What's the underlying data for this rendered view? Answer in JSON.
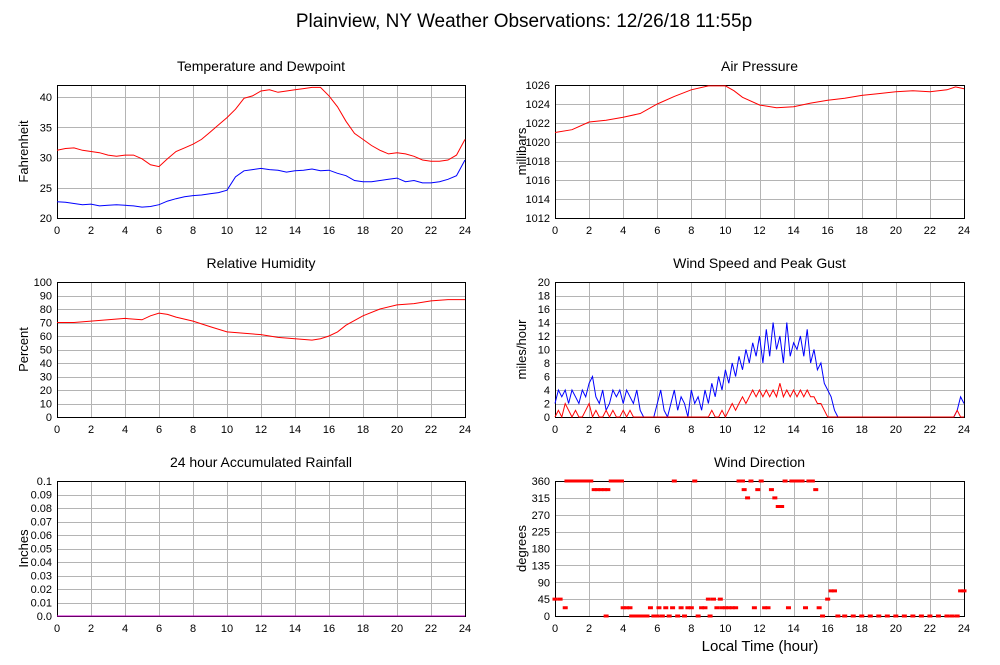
{
  "page": {
    "title": "Plainview, NY Weather Observations: 12/26/18 11:55p",
    "x_axis_title": "Local Time (hour)"
  },
  "colors": {
    "red": "#ff0000",
    "blue": "#0000ff",
    "grid": "#b4b4b4",
    "rain": "#cc00cc"
  },
  "chart_data": [
    {
      "id": "temp",
      "type": "line",
      "title": "Temperature and Dewpoint",
      "ylabel": "Fahrenheit",
      "xlim": [
        0,
        24
      ],
      "ylim": [
        20,
        42
      ],
      "x_ticks": [
        0,
        2,
        4,
        6,
        8,
        10,
        12,
        14,
        16,
        18,
        20,
        22,
        24
      ],
      "y_ticks": [
        20,
        25,
        30,
        35,
        40
      ],
      "series": [
        {
          "color": "red",
          "x": [
            0,
            0.5,
            1,
            1.5,
            2,
            2.5,
            3,
            3.5,
            4,
            4.5,
            5,
            5.5,
            6,
            6.5,
            7,
            7.5,
            8,
            8.5,
            9,
            9.5,
            10,
            10.5,
            11,
            11.5,
            12,
            12.5,
            13,
            13.5,
            14,
            14.5,
            15,
            15.5,
            16,
            16.5,
            17,
            17.5,
            18,
            18.5,
            19,
            19.5,
            20,
            20.5,
            21,
            21.5,
            22,
            22.5,
            23,
            23.5,
            24
          ],
          "y": [
            31.2,
            31.5,
            31.6,
            31.2,
            31.0,
            30.8,
            30.4,
            30.2,
            30.4,
            30.4,
            29.8,
            28.8,
            28.5,
            29.8,
            31.0,
            31.6,
            32.2,
            33.0,
            34.2,
            35.4,
            36.6,
            38.0,
            39.8,
            40.2,
            41.0,
            41.2,
            40.8,
            41.0,
            41.2,
            41.4,
            41.6,
            41.6,
            40.2,
            38.4,
            36.0,
            34.0,
            33.0,
            32.0,
            31.2,
            30.6,
            30.8,
            30.6,
            30.2,
            29.6,
            29.4,
            29.4,
            29.6,
            30.4,
            33.0
          ]
        },
        {
          "color": "blue",
          "x": [
            0,
            0.5,
            1,
            1.5,
            2,
            2.5,
            3,
            3.5,
            4,
            4.5,
            5,
            5.5,
            6,
            6.5,
            7,
            7.5,
            8,
            8.5,
            9,
            9.5,
            10,
            10.5,
            11,
            11.5,
            12,
            12.5,
            13,
            13.5,
            14,
            14.5,
            15,
            15.5,
            16,
            16.5,
            17,
            17.5,
            18,
            18.5,
            19,
            19.5,
            20,
            20.5,
            21,
            21.5,
            22,
            22.5,
            23,
            23.5,
            24
          ],
          "y": [
            22.7,
            22.6,
            22.4,
            22.2,
            22.3,
            22.0,
            22.1,
            22.2,
            22.1,
            22.0,
            21.8,
            21.9,
            22.2,
            22.8,
            23.2,
            23.5,
            23.7,
            23.8,
            24.0,
            24.2,
            24.6,
            26.8,
            27.8,
            28.0,
            28.2,
            28.0,
            27.9,
            27.6,
            27.8,
            27.9,
            28.1,
            27.8,
            27.9,
            27.4,
            27.0,
            26.2,
            26.0,
            26.0,
            26.2,
            26.4,
            26.6,
            26.0,
            26.2,
            25.8,
            25.8,
            26.0,
            26.4,
            27.0,
            29.6
          ]
        }
      ]
    },
    {
      "id": "pressure",
      "type": "line",
      "title": "Air Pressure",
      "ylabel": "millibars",
      "xlim": [
        0,
        24
      ],
      "ylim": [
        1012,
        1026
      ],
      "x_ticks": [
        0,
        2,
        4,
        6,
        8,
        10,
        12,
        14,
        16,
        18,
        20,
        22,
        24
      ],
      "y_ticks": [
        1012,
        1014,
        1016,
        1018,
        1020,
        1022,
        1024,
        1026
      ],
      "series": [
        {
          "color": "red",
          "x": [
            0,
            1,
            2,
            3,
            4,
            5,
            6,
            7,
            8,
            9,
            10,
            10.5,
            11,
            12,
            13,
            14,
            15,
            16,
            17,
            18,
            19,
            20,
            21,
            22,
            23,
            23.5,
            24
          ],
          "y": [
            1021.0,
            1021.3,
            1022.1,
            1022.3,
            1022.6,
            1023.0,
            1024.0,
            1024.8,
            1025.5,
            1025.9,
            1025.9,
            1025.4,
            1024.7,
            1023.9,
            1023.6,
            1023.7,
            1024.1,
            1024.4,
            1024.6,
            1024.9,
            1025.1,
            1025.3,
            1025.4,
            1025.3,
            1025.5,
            1025.8,
            1025.6
          ]
        }
      ]
    },
    {
      "id": "humidity",
      "type": "line",
      "title": "Relative Humidity",
      "ylabel": "Percent",
      "xlim": [
        0,
        24
      ],
      "ylim": [
        0,
        100
      ],
      "x_ticks": [
        0,
        2,
        4,
        6,
        8,
        10,
        12,
        14,
        16,
        18,
        20,
        22,
        24
      ],
      "y_ticks": [
        0,
        10,
        20,
        30,
        40,
        50,
        60,
        70,
        80,
        90,
        100
      ],
      "series": [
        {
          "color": "red",
          "x": [
            0,
            1,
            2,
            3,
            4,
            5,
            5.5,
            6,
            6.5,
            7,
            8,
            9,
            10,
            11,
            12,
            13,
            14,
            15,
            15.5,
            16,
            16.5,
            17,
            18,
            19,
            20,
            21,
            22,
            23,
            24
          ],
          "y": [
            70,
            70,
            71,
            72,
            73,
            72,
            75,
            77,
            76,
            74,
            71,
            67,
            63,
            62,
            61,
            59,
            58,
            57,
            58,
            60,
            63,
            68,
            75,
            80,
            83,
            84,
            86,
            87,
            87
          ]
        }
      ]
    },
    {
      "id": "wind",
      "type": "line",
      "title": "Wind Speed and Peak Gust",
      "ylabel": "miles/hour",
      "xlim": [
        0,
        24
      ],
      "ylim": [
        0,
        20
      ],
      "x_ticks": [
        0,
        2,
        4,
        6,
        8,
        10,
        12,
        14,
        16,
        18,
        20,
        22,
        24
      ],
      "y_ticks": [
        0,
        2,
        4,
        6,
        8,
        10,
        12,
        14,
        16,
        18,
        20
      ],
      "series": [
        {
          "color": "blue",
          "x": [
            0,
            0.2,
            0.4,
            0.6,
            0.8,
            1,
            1.2,
            1.4,
            1.6,
            1.8,
            2,
            2.2,
            2.4,
            2.6,
            2.8,
            3,
            3.2,
            3.4,
            3.6,
            3.8,
            4,
            4.2,
            4.4,
            4.6,
            4.8,
            5,
            5.2,
            5.4,
            5.6,
            5.8,
            6,
            6.2,
            6.4,
            6.6,
            6.8,
            7,
            7.2,
            7.4,
            7.6,
            7.8,
            8,
            8.2,
            8.4,
            8.6,
            8.8,
            9,
            9.2,
            9.4,
            9.6,
            9.8,
            10,
            10.2,
            10.4,
            10.6,
            10.8,
            11,
            11.2,
            11.4,
            11.6,
            11.8,
            12,
            12.2,
            12.4,
            12.6,
            12.8,
            13,
            13.2,
            13.4,
            13.6,
            13.8,
            14,
            14.2,
            14.4,
            14.6,
            14.8,
            15,
            15.2,
            15.4,
            15.6,
            15.8,
            16,
            16.2,
            16.4,
            16.6,
            17,
            18,
            19,
            20,
            21,
            22,
            23,
            23.4,
            23.6,
            23.8,
            24
          ],
          "y": [
            2,
            4,
            3,
            4,
            2,
            4,
            3,
            2,
            4,
            3,
            5,
            6,
            3,
            2,
            4,
            1,
            2,
            4,
            3,
            4,
            2,
            4,
            3,
            2,
            4,
            1,
            0,
            0,
            0,
            0,
            2,
            4,
            1,
            0,
            2,
            4,
            1,
            3,
            2,
            0,
            4,
            2,
            3,
            1,
            4,
            2,
            5,
            3,
            6,
            4,
            7,
            5,
            8,
            6,
            9,
            7,
            10,
            8,
            11,
            9,
            12,
            8,
            13,
            9,
            14,
            10,
            12,
            8,
            14,
            9,
            11,
            10,
            12,
            9,
            13,
            8,
            10,
            7,
            8,
            5,
            4,
            3,
            1,
            0,
            0,
            0,
            0,
            0,
            0,
            0,
            0,
            0,
            1,
            3,
            2
          ]
        },
        {
          "color": "red",
          "x": [
            0,
            0.2,
            0.4,
            0.6,
            0.8,
            1,
            1.2,
            1.4,
            1.6,
            1.8,
            2,
            2.2,
            2.4,
            2.6,
            2.8,
            3,
            3.2,
            3.4,
            3.6,
            3.8,
            4,
            4.2,
            4.4,
            4.6,
            4.8,
            5,
            5.2,
            5.4,
            5.6,
            5.8,
            6,
            6.2,
            6.4,
            6.6,
            6.8,
            7,
            7.2,
            7.4,
            7.6,
            7.8,
            8,
            8.2,
            8.4,
            8.6,
            8.8,
            9,
            9.2,
            9.4,
            9.6,
            9.8,
            10,
            10.2,
            10.4,
            10.6,
            10.8,
            11,
            11.2,
            11.4,
            11.6,
            11.8,
            12,
            12.2,
            12.4,
            12.6,
            12.8,
            13,
            13.2,
            13.4,
            13.6,
            13.8,
            14,
            14.2,
            14.4,
            14.6,
            14.8,
            15,
            15.2,
            15.4,
            15.6,
            15.8,
            16,
            16.2,
            16.4,
            16.6,
            17,
            18,
            19,
            20,
            21,
            22,
            23,
            23.4,
            23.6,
            23.8,
            24
          ],
          "y": [
            0,
            1,
            0,
            2,
            1,
            0,
            1,
            0,
            0,
            1,
            2,
            0,
            1,
            0,
            0,
            1,
            0,
            1,
            0,
            0,
            1,
            0,
            1,
            0,
            0,
            0,
            0,
            0,
            0,
            0,
            0,
            0,
            0,
            0,
            0,
            0,
            0,
            0,
            0,
            0,
            0,
            0,
            0,
            0,
            0,
            0,
            1,
            0,
            0,
            1,
            0,
            1,
            2,
            1,
            2,
            3,
            2,
            3,
            4,
            3,
            4,
            3,
            4,
            3,
            4,
            3,
            5,
            3,
            4,
            3,
            4,
            3,
            4,
            3,
            4,
            3,
            3,
            2,
            2,
            1,
            0,
            0,
            0,
            0,
            0,
            0,
            0,
            0,
            0,
            0,
            0,
            0,
            1,
            0,
            0
          ]
        }
      ]
    },
    {
      "id": "rain",
      "type": "line",
      "title": "24 hour Accumulated Rainfall",
      "ylabel": "Inches",
      "xlim": [
        0,
        24
      ],
      "ylim": [
        0,
        0.1
      ],
      "x_ticks": [
        0,
        2,
        4,
        6,
        8,
        10,
        12,
        14,
        16,
        18,
        20,
        22,
        24
      ],
      "y_ticks": [
        0.0,
        0.01,
        0.02,
        0.03,
        0.04,
        0.05,
        0.06,
        0.07,
        0.08,
        0.09,
        0.1
      ],
      "series": [
        {
          "color": "rain",
          "x": [
            0,
            24
          ],
          "y": [
            0,
            0
          ]
        }
      ]
    },
    {
      "id": "direction",
      "type": "scatter",
      "title": "Wind Direction",
      "ylabel": "degrees",
      "xlabel": "Local Time (hour)",
      "xlim": [
        0,
        24
      ],
      "ylim": [
        0,
        360
      ],
      "x_ticks": [
        0,
        2,
        4,
        6,
        8,
        10,
        12,
        14,
        16,
        18,
        20,
        22,
        24
      ],
      "y_ticks": [
        0,
        45,
        90,
        135,
        180,
        225,
        270,
        315,
        360
      ],
      "series": [
        {
          "color": "red",
          "x": [
            0,
            0.3,
            0.6,
            0.7,
            0.9,
            1.1,
            1.3,
            1.5,
            1.7,
            1.9,
            2.1,
            2.3,
            2.5,
            2.7,
            2.9,
            3.1,
            3.0,
            3.3,
            3.5,
            3.7,
            3.9,
            4.0,
            4.2,
            4.4,
            4.5,
            4.6,
            4.8,
            5.0,
            5.2,
            5.4,
            5.6,
            5.8,
            6.0,
            6.1,
            6.3,
            6.5,
            6.7,
            6.9,
            7.0,
            7.2,
            7.4,
            7.6,
            7.8,
            8.0,
            8.2,
            8.4,
            8.6,
            8.8,
            9.0,
            9.1,
            9.3,
            9.5,
            9.7,
            9.8,
            10.0,
            10.2,
            10.4,
            10.6,
            10.8,
            11.0,
            11.1,
            11.3,
            11.5,
            11.7,
            11.9,
            12.1,
            12.3,
            12.5,
            12.7,
            12.9,
            13.1,
            13.3,
            13.5,
            13.7,
            13.9,
            14.1,
            14.3,
            14.5,
            14.7,
            14.9,
            15.1,
            15.3,
            15.5,
            15.7,
            16.0,
            16.2,
            16.4,
            16.6,
            17,
            17.5,
            18,
            18.5,
            19,
            19.5,
            20,
            20.5,
            21,
            21.5,
            22,
            22.5,
            23,
            23.3,
            23.6,
            23.8,
            24
          ],
          "y": [
            45,
            45,
            22,
            360,
            360,
            360,
            360,
            360,
            360,
            360,
            360,
            337,
            337,
            337,
            337,
            337,
            0,
            360,
            360,
            360,
            360,
            22,
            22,
            22,
            0,
            0,
            0,
            0,
            0,
            0,
            22,
            0,
            0,
            22,
            0,
            22,
            0,
            22,
            360,
            0,
            22,
            0,
            22,
            22,
            360,
            0,
            22,
            22,
            45,
            0,
            45,
            22,
            45,
            22,
            22,
            22,
            22,
            22,
            360,
            360,
            337,
            315,
            360,
            22,
            337,
            360,
            22,
            22,
            337,
            315,
            292,
            292,
            360,
            22,
            360,
            360,
            360,
            360,
            22,
            360,
            360,
            337,
            22,
            0,
            45,
            67,
            67,
            0,
            0,
            0,
            0,
            0,
            0,
            0,
            0,
            0,
            0,
            0,
            0,
            0,
            0,
            0,
            0,
            67,
            67
          ]
        }
      ]
    }
  ]
}
